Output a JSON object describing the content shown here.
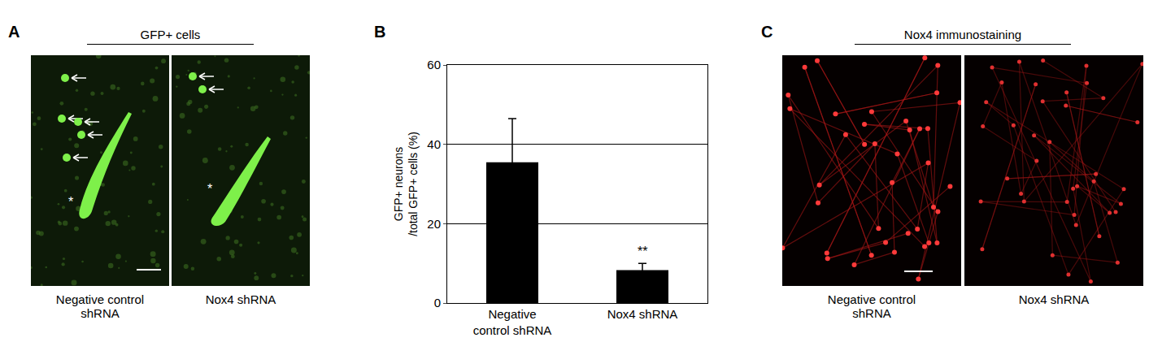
{
  "chart_data": {
    "type": "bar",
    "panel_label": "B",
    "categories": [
      "Negative control shRNA",
      "Nox4 shRNA"
    ],
    "values": [
      35.5,
      8.3
    ],
    "errors": [
      11,
      1.7
    ],
    "color": "#000000",
    "y_label": "GFP+ neurons /total GFP+ cells (%)",
    "ylim": [
      0,
      60
    ],
    "yticks": [
      0,
      20,
      40,
      60
    ],
    "grid": true,
    "annotations": [
      {
        "category": "Nox4 shRNA",
        "text": "**"
      }
    ]
  },
  "image_panels": [
    {
      "label": "A",
      "title": "GFP+ cells",
      "images": [
        {
          "caption": "Negative control shRNA",
          "mark": "*"
        },
        {
          "caption": "Nox4 shRNA",
          "mark": "*"
        }
      ]
    },
    {
      "label": "C",
      "title": "Nox4 immunostaining",
      "images": [
        {
          "caption": "Negative control shRNA"
        },
        {
          "caption": "Nox4 shRNA"
        }
      ]
    }
  ]
}
